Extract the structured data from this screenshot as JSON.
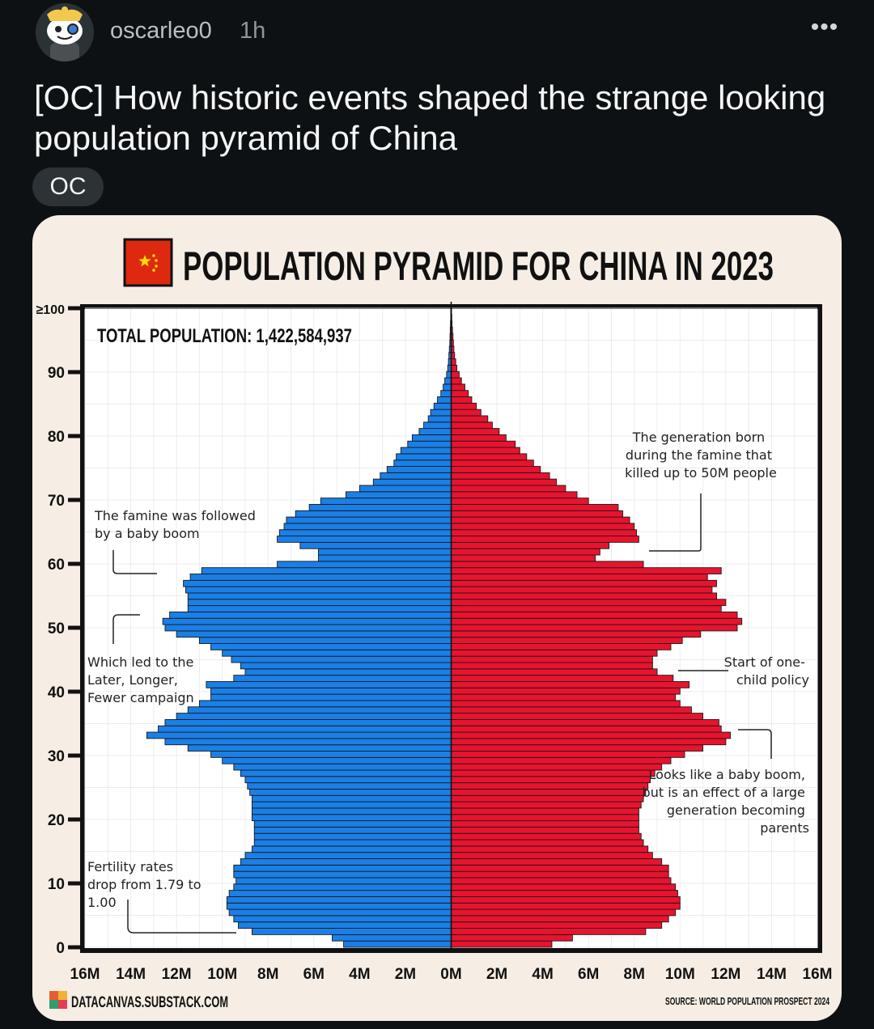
{
  "post": {
    "username": "oscarleo0",
    "time": "1h",
    "more_label": "•••",
    "title": "[OC] How historic events shaped the strange looking population pyramid of China",
    "flair": "OC"
  },
  "colors": {
    "background": "#0e1113",
    "card": "#f6eee4",
    "male": "#1a7fe6",
    "female": "#e8132e",
    "flag": "#de2910",
    "flag_star": "#ffde00"
  },
  "chart_data": {
    "type": "bar",
    "orientation": "horizontal-pyramid",
    "title": "POPULATION PYRAMID FOR CHINA IN 2023",
    "flag_icon": "china-flag-icon",
    "total_label": "TOTAL POPULATION: 1,422,584,937",
    "y_ticks": [
      "0",
      "10",
      "20",
      "30",
      "40",
      "50",
      "60",
      "70",
      "80",
      "90",
      "≥100"
    ],
    "x_ticks": [
      "16M",
      "14M",
      "12M",
      "10M",
      "8M",
      "6M",
      "4M",
      "2M",
      "0M",
      "2M",
      "4M",
      "6M",
      "8M",
      "10M",
      "12M",
      "14M",
      "16M"
    ],
    "xlim": [
      -16,
      16
    ],
    "ylim": [
      0,
      100
    ],
    "unit": "M",
    "series": [
      {
        "side": "left",
        "color": "#1a7fe6",
        "values": [
          4.7,
          5.2,
          8.7,
          9.3,
          9.5,
          9.7,
          9.8,
          9.8,
          9.7,
          9.5,
          9.4,
          9.5,
          9.5,
          9.2,
          9.0,
          8.7,
          8.6,
          8.6,
          8.6,
          8.6,
          8.7,
          8.7,
          8.7,
          8.7,
          8.8,
          8.9,
          9.0,
          9.2,
          9.5,
          10.0,
          10.5,
          11.5,
          12.5,
          13.3,
          12.8,
          12.5,
          12.0,
          11.5,
          11.0,
          10.5,
          10.5,
          10.7,
          9.5,
          9.0,
          9.2,
          9.6,
          10.0,
          10.5,
          11.0,
          12.0,
          12.5,
          12.6,
          12.3,
          11.5,
          11.5,
          11.5,
          11.6,
          11.7,
          11.4,
          10.9,
          7.6,
          5.8,
          5.8,
          6.6,
          7.6,
          7.5,
          7.3,
          7.2,
          6.8,
          6.2,
          5.7,
          4.6,
          4.0,
          3.4,
          3.1,
          2.8,
          2.5,
          2.4,
          2.2,
          1.9,
          1.7,
          1.4,
          1.2,
          1.0,
          0.9,
          0.75,
          0.6,
          0.45,
          0.35,
          0.28,
          0.2,
          0.15,
          0.12,
          0.1,
          0.08,
          0.06,
          0.05,
          0.04,
          0.03,
          0.02,
          0.02
        ]
      },
      {
        "side": "right",
        "color": "#e8132e",
        "values": [
          4.4,
          5.3,
          8.5,
          9.2,
          9.5,
          9.8,
          10.0,
          10.0,
          9.9,
          9.8,
          9.6,
          9.5,
          9.5,
          9.2,
          8.8,
          8.6,
          8.4,
          8.3,
          8.2,
          8.2,
          8.2,
          8.2,
          8.3,
          8.4,
          8.5,
          8.6,
          8.7,
          8.9,
          9.2,
          9.6,
          10.2,
          11.0,
          12.0,
          12.2,
          11.8,
          11.7,
          11.0,
          10.5,
          10.0,
          9.8,
          10.0,
          10.4,
          9.7,
          9.0,
          8.8,
          8.8,
          9.0,
          9.6,
          10.1,
          10.9,
          12.5,
          12.7,
          12.5,
          11.8,
          12.0,
          11.6,
          11.4,
          11.6,
          11.2,
          11.8,
          8.4,
          6.3,
          6.5,
          6.9,
          8.2,
          8.1,
          8.0,
          7.8,
          7.5,
          7.3,
          6.0,
          5.5,
          5.0,
          4.6,
          4.3,
          3.9,
          3.6,
          3.3,
          3.0,
          2.8,
          2.4,
          2.1,
          1.8,
          1.6,
          1.3,
          1.1,
          0.9,
          0.75,
          0.6,
          0.45,
          0.35,
          0.25,
          0.2,
          0.15,
          0.12,
          0.1,
          0.08,
          0.06,
          0.04,
          0.03,
          0.02
        ]
      }
    ],
    "annotations": [
      {
        "id": "famine-generation",
        "text": "The generation born during the famine that killed up to 50M people"
      },
      {
        "id": "baby-boom",
        "text": "The famine was followed by a baby boom"
      },
      {
        "id": "later-longer-fewer",
        "text": "Which led to the Later, Longer, Fewer campaign"
      },
      {
        "id": "one-child",
        "text": "Start of one-child policy"
      },
      {
        "id": "echo-boom",
        "text": "Looks like a baby boom, but is an effect of a large generation becoming parents"
      },
      {
        "id": "fertility",
        "text": "Fertility rates drop from 1.79 to 1.00"
      }
    ],
    "brand": "DATACANVAS.SUBSTACK.COM",
    "source": "SOURCE: WORLD POPULATION PROSPECT 2024"
  }
}
